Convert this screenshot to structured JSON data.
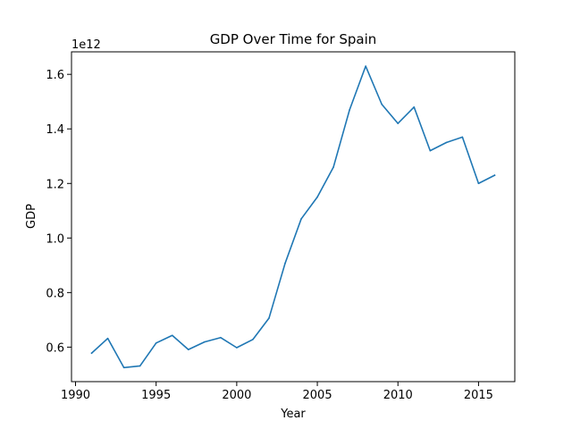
{
  "chart_data": {
    "type": "line",
    "title": "GDP Over Time for Spain",
    "xlabel": "Year",
    "ylabel": "GDP",
    "y_offset_label": "1e12",
    "y_scale_factor": 1000000000000.0,
    "xlim": [
      1989.75,
      2017.25
    ],
    "ylim": [
      0.4735,
      1.6825
    ],
    "xticks": [
      1990,
      1995,
      2000,
      2005,
      2010,
      2015
    ],
    "yticks": [
      0.6,
      0.8,
      1.0,
      1.2,
      1.4,
      1.6
    ],
    "ytick_labels": [
      "0.6",
      "0.8",
      "1.0",
      "1.2",
      "1.4",
      "1.6"
    ],
    "grid": false,
    "line_color": "#1f77b4",
    "x": [
      1991,
      1992,
      1993,
      1994,
      1995,
      1996,
      1997,
      1998,
      1999,
      2000,
      2001,
      2002,
      2003,
      2004,
      2005,
      2006,
      2007,
      2008,
      2009,
      2010,
      2011,
      2012,
      2013,
      2014,
      2015,
      2016
    ],
    "series": [
      {
        "values": [
          0.578,
          0.632,
          0.525,
          0.531,
          0.615,
          0.643,
          0.591,
          0.619,
          0.635,
          0.598,
          0.628,
          0.706,
          0.907,
          1.07,
          1.15,
          1.26,
          1.47,
          1.63,
          1.49,
          1.42,
          1.48,
          1.32,
          1.35,
          1.37,
          1.2,
          1.23
        ]
      }
    ]
  }
}
